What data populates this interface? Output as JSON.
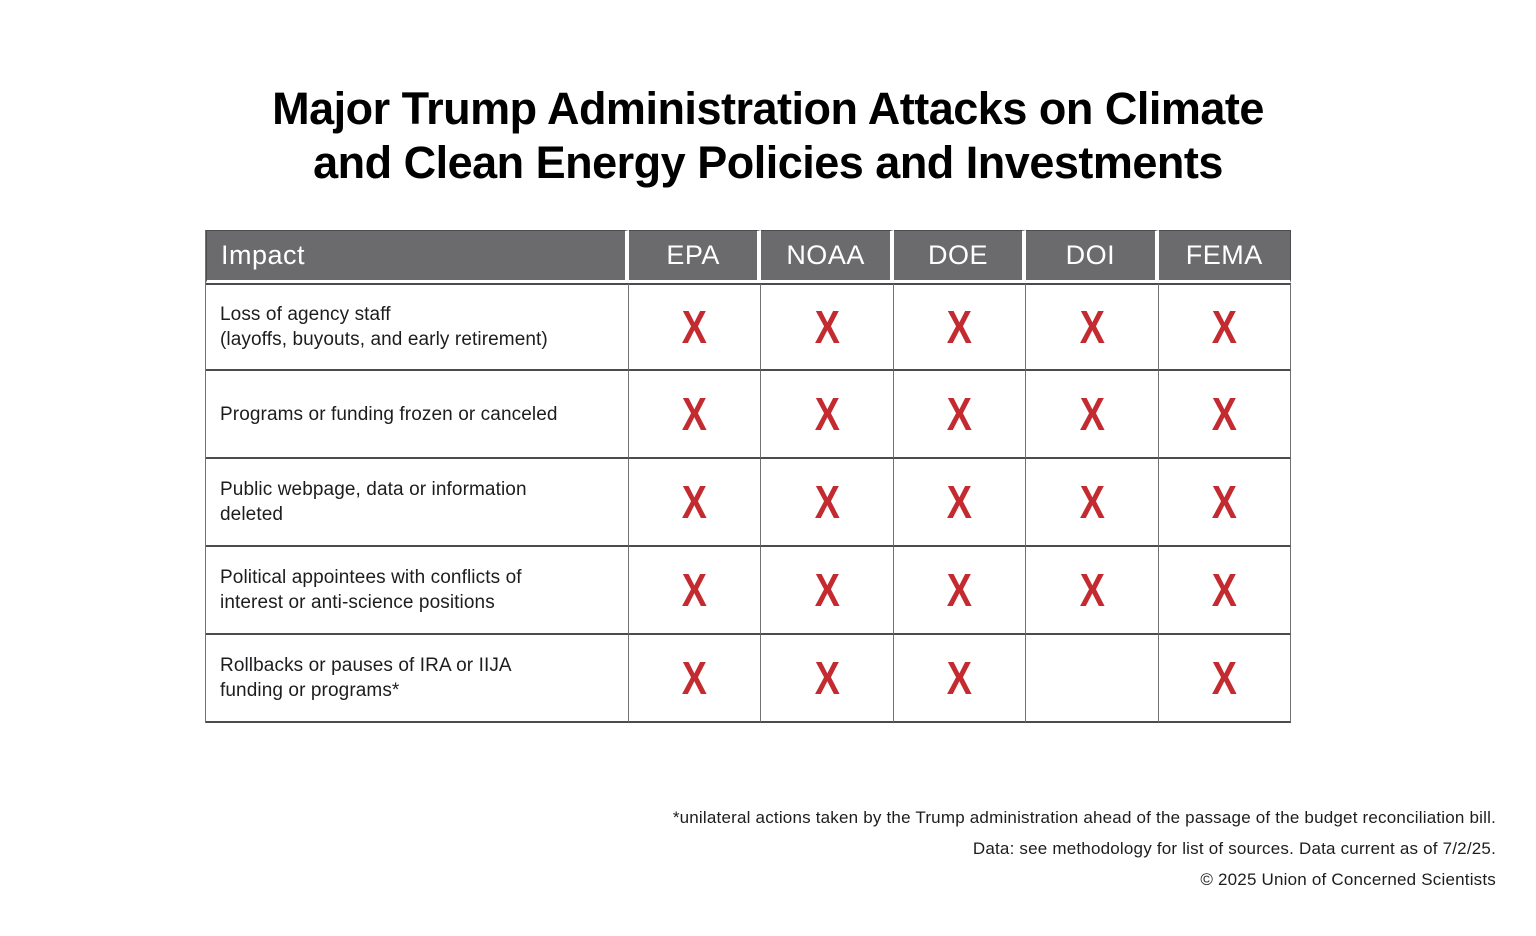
{
  "title": {
    "line1": "Major Trump Administration Attacks on Climate",
    "line2": "and Clean Energy Policies and Investments"
  },
  "chart_data": {
    "type": "table",
    "title": "Major Trump Administration Attacks on Climate and Clean Energy Policies and Investments",
    "columns": [
      "Impact",
      "EPA",
      "NOAA",
      "DOE",
      "DOI",
      "FEMA"
    ],
    "rows": [
      {
        "impact": "Loss of agency staff (layoffs, buyouts, and early retirement)",
        "EPA": true,
        "NOAA": true,
        "DOE": true,
        "DOI": true,
        "FEMA": true
      },
      {
        "impact": "Programs or funding frozen or canceled",
        "EPA": true,
        "NOAA": true,
        "DOE": true,
        "DOI": true,
        "FEMA": true
      },
      {
        "impact": "Public webpage, data or information deleted",
        "EPA": true,
        "NOAA": true,
        "DOE": true,
        "DOI": true,
        "FEMA": true
      },
      {
        "impact": "Political appointees with conflicts of interest or anti-science positions",
        "EPA": true,
        "NOAA": true,
        "DOE": true,
        "DOI": true,
        "FEMA": true
      },
      {
        "impact": "Rollbacks or pauses of IRA or IIJA funding or programs*",
        "EPA": true,
        "NOAA": true,
        "DOE": true,
        "DOI": false,
        "FEMA": true
      }
    ],
    "mark_glyph": "X",
    "legend_position": "none"
  },
  "table": {
    "header": {
      "impact_label": "Impact",
      "agencies": [
        "EPA",
        "NOAA",
        "DOE",
        "DOI",
        "FEMA"
      ]
    },
    "rows": [
      {
        "label_lines": [
          "Loss of agency staff",
          "(layoffs, buyouts, and early retirement)"
        ],
        "marks": [
          "X",
          "X",
          "X",
          "X",
          "X"
        ]
      },
      {
        "label_lines": [
          "Programs or funding frozen or canceled"
        ],
        "marks": [
          "X",
          "X",
          "X",
          "X",
          "X"
        ]
      },
      {
        "label_lines": [
          "Public webpage, data or information",
          "deleted"
        ],
        "marks": [
          "X",
          "X",
          "X",
          "X",
          "X"
        ]
      },
      {
        "label_lines": [
          "Political appointees with conflicts of",
          "interest or anti-science positions"
        ],
        "marks": [
          "X",
          "X",
          "X",
          "X",
          "X"
        ]
      },
      {
        "label_lines": [
          "Rollbacks or pauses of IRA or IIJA",
          "funding or programs*"
        ],
        "marks": [
          "X",
          "X",
          "X",
          "",
          "X"
        ]
      }
    ]
  },
  "footnotes": [
    "*unilateral actions taken by the Trump administration ahead of the passage of the budget reconciliation bill.",
    "Data: see methodology for list of sources. Data current as of 7/2/25.",
    "© 2025 Union of Concerned Scientists"
  ],
  "colors": {
    "header_bg": "#6B6B6D",
    "mark_red": "#C32B30",
    "border_dark": "#4C4C4E",
    "border_light": "#737375",
    "text": "#1D1D1F"
  }
}
